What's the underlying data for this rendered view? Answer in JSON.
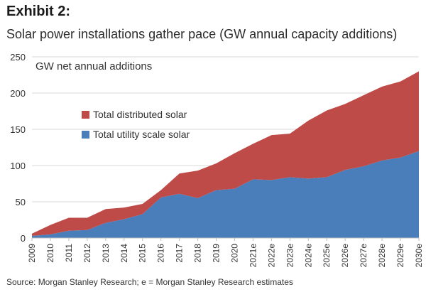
{
  "header": {
    "exhibit": "Exhibit 2:",
    "subtitle": "Solar power installations gather pace (GW annual capacity additions)"
  },
  "footer": {
    "source": "Source: Morgan Stanley Research; e = Morgan Stanley Research estimates"
  },
  "chart_data": {
    "type": "area",
    "stacked": true,
    "annotation": "GW net annual additions",
    "categories": [
      "2009",
      "2010",
      "2011",
      "2012",
      "2013",
      "2014",
      "2015",
      "2016",
      "2017",
      "2018",
      "2019",
      "2020",
      "2021e",
      "2022e",
      "2023e",
      "2024e",
      "2025e",
      "2026e",
      "2027e",
      "2028e",
      "2029e",
      "2030e"
    ],
    "series": [
      {
        "name": "Total utility scale solar",
        "color": "#4a7ebb",
        "values": [
          3,
          5,
          10,
          11,
          21,
          26,
          33,
          56,
          61,
          55,
          66,
          68,
          81,
          80,
          84,
          82,
          84,
          94,
          99,
          107,
          111,
          120
        ]
      },
      {
        "name": "Total distributed solar",
        "color": "#be4b48",
        "values": [
          3,
          13,
          18,
          17,
          19,
          16,
          14,
          10,
          28,
          38,
          37,
          49,
          49,
          62,
          60,
          80,
          92,
          91,
          98,
          102,
          105,
          110
        ]
      }
    ],
    "ylim": [
      0,
      250
    ],
    "yticks": [
      0,
      50,
      100,
      150,
      200,
      250
    ],
    "grid": true,
    "legend": "center-left"
  }
}
